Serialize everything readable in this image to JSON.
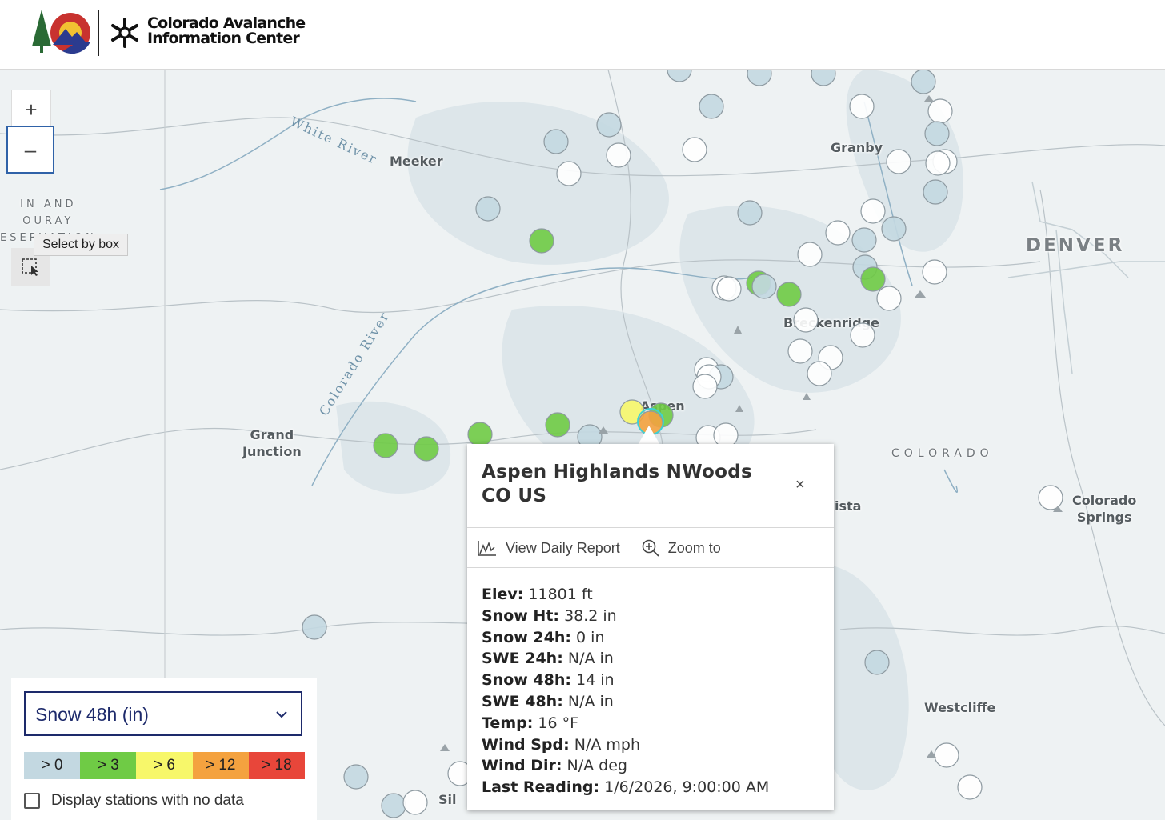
{
  "header": {
    "logo_line1": "Colorado Avalanche",
    "logo_line2": "Information Center"
  },
  "map": {
    "places": [
      {
        "name": "Meeker"
      },
      {
        "name": "Granby"
      },
      {
        "name": "DENVER"
      },
      {
        "name": "Breckenridge"
      },
      {
        "name": "Aspen"
      },
      {
        "name": "Grand\nJunction"
      },
      {
        "name": "COLORADO"
      },
      {
        "name": "Colorado\nSprings"
      },
      {
        "name": "Westcliffe"
      },
      {
        "name": "ista"
      },
      {
        "name": "Sil"
      }
    ],
    "rivers": [
      "White River",
      "Colorado River"
    ],
    "reservation_label": "IN  AND\nOURAY\nESERVATION",
    "zoom_in": "+",
    "zoom_out": "–",
    "select_tooltip": "Select by box"
  },
  "popup": {
    "title": "Aspen Highlands NWoods CO US",
    "close": "×",
    "actions": [
      {
        "label": "View Daily Report",
        "icon": "chart-line-icon"
      },
      {
        "label": "Zoom to",
        "icon": "zoom-in-icon"
      }
    ],
    "fields": [
      {
        "label": "Elev:",
        "value": "11801 ft"
      },
      {
        "label": "Snow Ht:",
        "value": "38.2 in"
      },
      {
        "label": "Snow 24h:",
        "value": "0 in"
      },
      {
        "label": "SWE 24h:",
        "value": "N/A in"
      },
      {
        "label": "Snow 48h:",
        "value": "14 in"
      },
      {
        "label": "SWE 48h:",
        "value": "N/A in"
      },
      {
        "label": "Temp:",
        "value": "16 °F"
      },
      {
        "label": "Wind Spd:",
        "value": "N/A mph"
      },
      {
        "label": "Wind Dir:",
        "value": "N/A deg"
      },
      {
        "label": "Last Reading:",
        "value": "1/6/2026, 9:00:00 AM"
      }
    ]
  },
  "legend": {
    "selected": "Snow 48h (in)",
    "bins": [
      {
        "label": "> 0",
        "color": "#c3d8e1"
      },
      {
        "label": "> 3",
        "color": "#6fcb45"
      },
      {
        "label": "> 6",
        "color": "#f7f76a"
      },
      {
        "label": "> 12",
        "color": "#f4a23f"
      },
      {
        "label": "> 18",
        "color": "#e8463a"
      }
    ],
    "nodata_label": "Display stations with no data",
    "nodata_checked": false
  }
}
